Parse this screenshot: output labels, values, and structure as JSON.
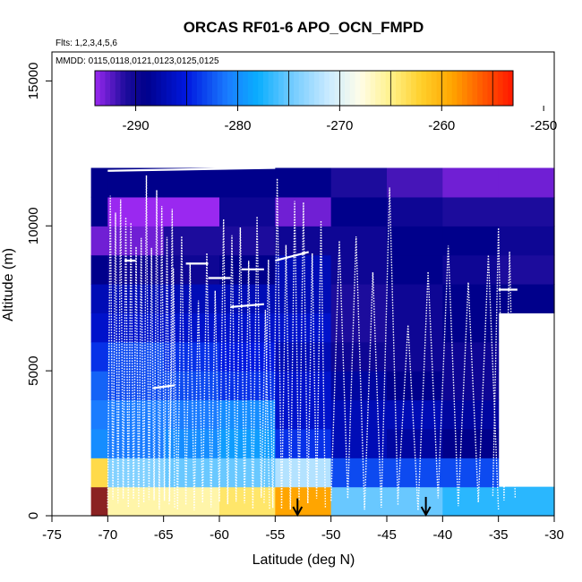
{
  "chart_data": {
    "type": "heatmap",
    "title": "ORCAS RF01-6 APO_OCN_FMPD",
    "xlabel": "Latitude (deg N)",
    "ylabel": "Altitude (m)",
    "note_flights": "Flts: 1,2,3,4,5,6",
    "note_dates": "MMDD: 0115,0118,0121,0123,0125,0125",
    "xlim": [
      -75,
      -30
    ],
    "ylim": [
      0,
      16000
    ],
    "x_ticks": [
      -75,
      -70,
      -65,
      -60,
      -55,
      -50,
      -45,
      -40,
      -35,
      -30
    ],
    "x_tick_labels": [
      "-75",
      "-70",
      "-65",
      "-60",
      "-55",
      "-50",
      "-45",
      "-40",
      "-35",
      "-30"
    ],
    "y_ticks": [
      0,
      5000,
      10000,
      15000
    ],
    "y_tick_labels": [
      "0",
      "5000",
      "10000",
      "15000"
    ],
    "colorbar": {
      "range": [
        -294,
        -253
      ],
      "ticks": [
        -290,
        -280,
        -270,
        -260,
        -250
      ],
      "tick_labels": [
        "-290",
        "-280",
        "-270",
        "-260",
        "-250"
      ],
      "stops": [
        {
          "v": -294,
          "c": "#9a28f0"
        },
        {
          "v": -291,
          "c": "#1c0c9c"
        },
        {
          "v": -289,
          "c": "#00008b"
        },
        {
          "v": -285,
          "c": "#0018e0"
        },
        {
          "v": -281,
          "c": "#1a7cff"
        },
        {
          "v": -278,
          "c": "#0aaefe"
        },
        {
          "v": -275,
          "c": "#69c8ff"
        },
        {
          "v": -271,
          "c": "#ccebff"
        },
        {
          "v": -268,
          "c": "#fffde8"
        },
        {
          "v": -265,
          "c": "#fff18a"
        },
        {
          "v": -262,
          "c": "#ffcf2a"
        },
        {
          "v": -259,
          "c": "#ffa500"
        },
        {
          "v": -256,
          "c": "#ff5a00"
        },
        {
          "v": -252,
          "c": "#ff0000"
        },
        {
          "v": -248,
          "c": "#b30000"
        },
        {
          "v": -245,
          "c": "#8b2222"
        }
      ]
    },
    "lat_bins": [
      -71.5,
      -70,
      -65,
      -60,
      -55,
      -50,
      -45,
      -40,
      -35,
      -30
    ],
    "alt_bins": [
      0,
      1000,
      2000,
      3000,
      4000,
      5000,
      6000,
      7000,
      8000,
      9000,
      10000,
      11000,
      12000
    ],
    "values": [
      [
        -245,
        -266,
        -266,
        -264,
        -259,
        -275,
        -275,
        -277,
        -277
      ],
      [
        -263,
        -274,
        -275,
        -275,
        -272,
        -283,
        -283,
        -283,
        null
      ],
      [
        -280,
        -281,
        -280,
        -279,
        -284,
        -287,
        -288,
        -289,
        null
      ],
      [
        -281,
        -281,
        -281,
        -280,
        -286,
        -287,
        -287,
        -288,
        null
      ],
      [
        -282,
        -283,
        -283,
        -284,
        -286,
        -288,
        -289,
        -290,
        null
      ],
      [
        -284,
        -283,
        -284,
        -285,
        -287,
        -290,
        -290,
        -290,
        null
      ],
      [
        -286,
        -286,
        -286,
        -286,
        -286,
        -291,
        -290,
        -289,
        null
      ],
      [
        -287,
        -287,
        -287,
        -287,
        -287,
        -291,
        -290,
        -289,
        -289
      ],
      [
        -289,
        -290,
        -290,
        -289,
        -287,
        -290,
        -289,
        -290,
        -291
      ],
      [
        -293,
        -293,
        -291,
        -291,
        -290,
        -290,
        -289,
        -289,
        -290
      ],
      [
        -289,
        -294,
        -294,
        -290,
        -293,
        -289,
        -290,
        -291,
        -291
      ],
      [
        -289,
        -289,
        -289,
        -289,
        -289,
        -291,
        -292,
        -293,
        -293
      ]
    ],
    "arrows": [
      {
        "lat": -53.0,
        "top_alt": 600
      },
      {
        "lat": -41.5,
        "top_alt": 650
      }
    ],
    "flight_track_color": "#ffffff"
  }
}
